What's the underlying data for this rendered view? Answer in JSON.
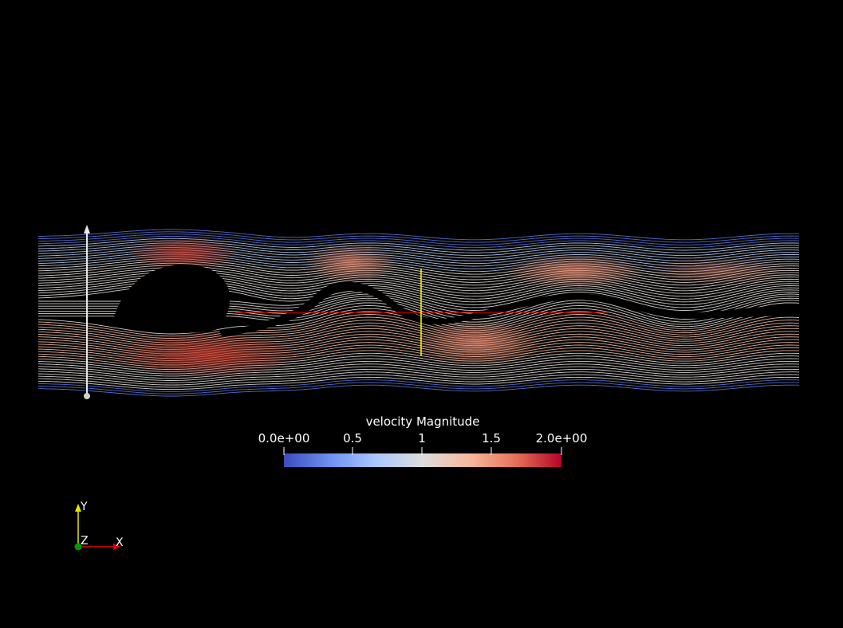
{
  "scalar_bar": {
    "title": "velocity Magnitude",
    "ticks": [
      "0.0e+00",
      "0.5",
      "1",
      "1.5",
      "2.0e+00"
    ],
    "tick_values": [
      0,
      0.5,
      1,
      1.5,
      2
    ],
    "range": [
      0,
      2
    ],
    "colormap": [
      "#3b4cc0",
      "#6f92f3",
      "#aac7fd",
      "#dddcdc",
      "#f7b89c",
      "#e7745b",
      "#b40426"
    ]
  },
  "orientation_axes": {
    "y_label": "Y",
    "z_label": "Z",
    "x_label": "X",
    "y_color": "#e5e500",
    "x_color": "#e50000",
    "z_color": "#009900"
  },
  "scene": {
    "background": "#000000",
    "probe_line_color": "#ffff00",
    "slice_line_color": "#ff0000",
    "seed_line_color": "#e8e8e8"
  }
}
